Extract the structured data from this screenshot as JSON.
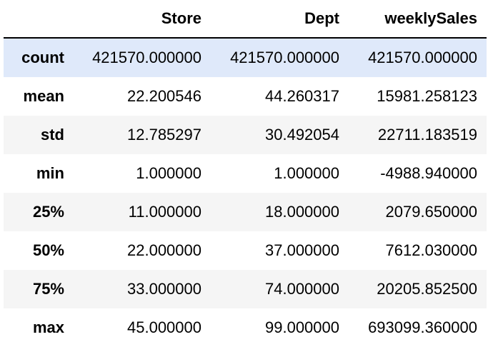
{
  "table": {
    "columns": [
      "",
      "Store",
      "Dept",
      "weeklySales"
    ],
    "rows": [
      {
        "label": "count",
        "values": [
          "421570.000000",
          "421570.000000",
          "421570.000000"
        ]
      },
      {
        "label": "mean",
        "values": [
          "22.200546",
          "44.260317",
          "15981.258123"
        ]
      },
      {
        "label": "std",
        "values": [
          "12.785297",
          "30.492054",
          "22711.183519"
        ]
      },
      {
        "label": "min",
        "values": [
          "1.000000",
          "1.000000",
          "-4988.940000"
        ]
      },
      {
        "label": "25%",
        "values": [
          "11.000000",
          "18.000000",
          "2079.650000"
        ]
      },
      {
        "label": "50%",
        "values": [
          "22.000000",
          "37.000000",
          "7612.030000"
        ]
      },
      {
        "label": "75%",
        "values": [
          "33.000000",
          "74.000000",
          "20205.852500"
        ]
      },
      {
        "label": "max",
        "values": [
          "45.000000",
          "99.000000",
          "693099.360000"
        ]
      }
    ],
    "highlighted_row": "count"
  },
  "colors": {
    "header_border": "#000000",
    "striped_row": "#f5f5f5",
    "highlight_row": "#dfe9fa",
    "text": "#000000"
  }
}
